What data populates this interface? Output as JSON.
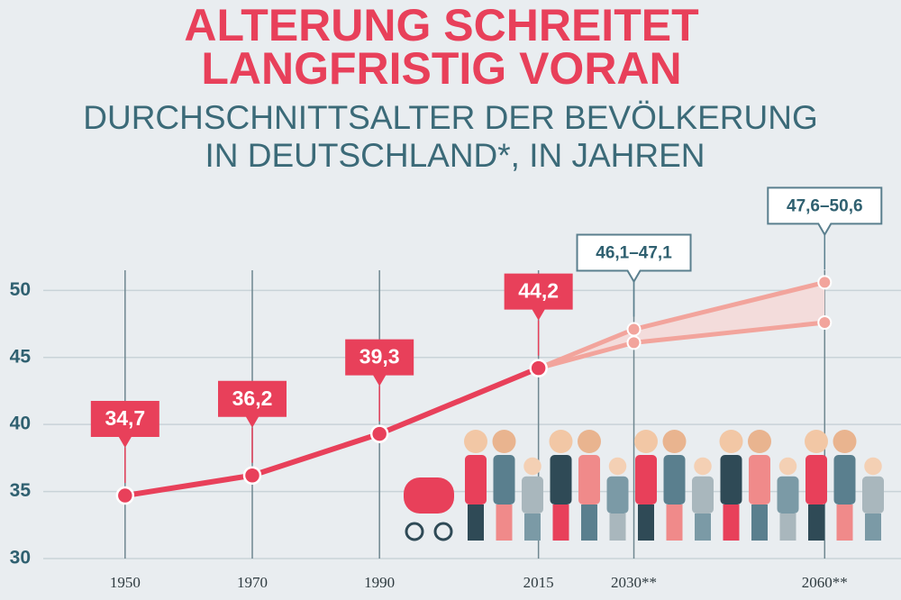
{
  "chart_data": {
    "type": "line",
    "title": [
      "ALTERUNG SCHREITET",
      "LANGFRISTIG VORAN"
    ],
    "subtitle": [
      "DURCHSCHNITTSALTER DER BEVÖLKERUNG",
      "IN DEUTSCHLAND*, IN JAHREN"
    ],
    "x": [
      1950,
      1970,
      1990,
      2015
    ],
    "values": [
      34.7,
      36.2,
      39.3,
      44.2
    ],
    "value_labels": [
      "34,7",
      "36,2",
      "39,3",
      "44,2"
    ],
    "color": "#e8405a",
    "projection": {
      "x": [
        2030,
        2060
      ],
      "low": [
        46.1,
        47.6
      ],
      "high": [
        47.1,
        50.6
      ],
      "range_labels": [
        "46,1–47,1",
        "47,6–50,6"
      ],
      "color": "#f2a49c",
      "fill": "#f3dcdb"
    },
    "xlim": [
      1936,
      2072
    ],
    "ylim": [
      30,
      51.5
    ],
    "xticks": [
      1950,
      1970,
      1990,
      2015,
      {
        "value": 2030,
        "label": "2030**"
      },
      {
        "value": 2060,
        "label": "2060**"
      }
    ],
    "yticks": [
      30,
      35,
      40,
      45,
      50
    ],
    "grid": true
  }
}
